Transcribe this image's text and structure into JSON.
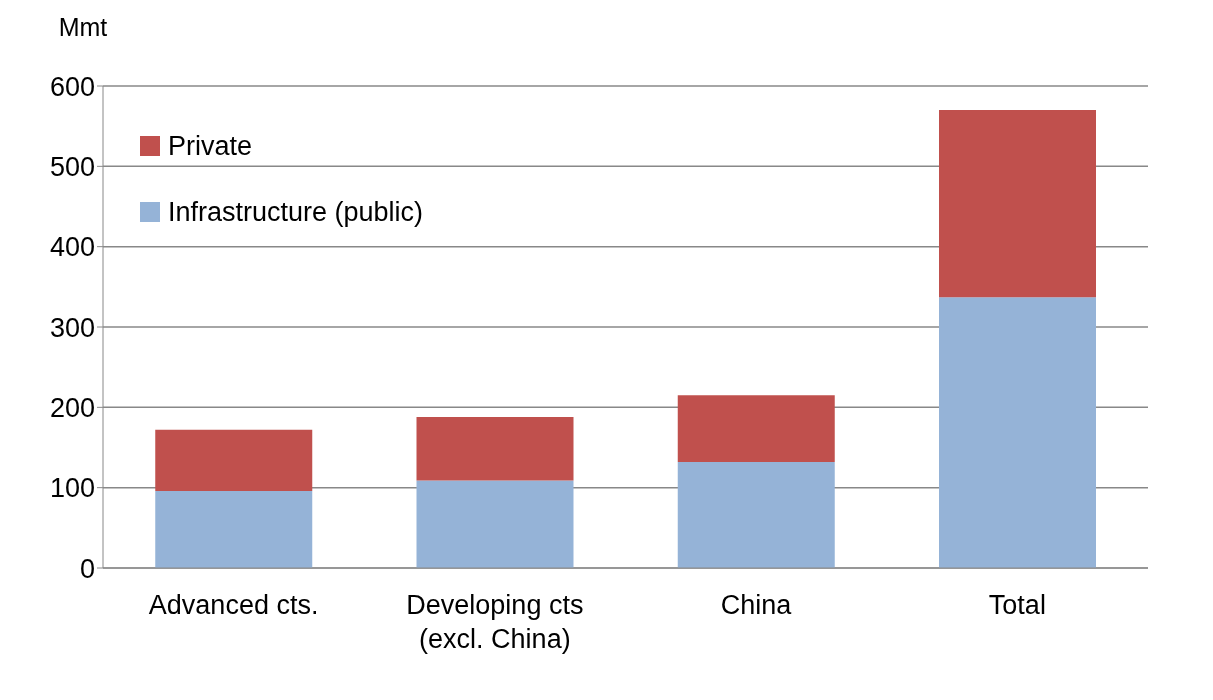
{
  "chart_data": {
    "type": "bar",
    "ylabel": "Mmt",
    "stacked": true,
    "categories": [
      "Advanced cts.",
      "Developing cts (excl. China)",
      "China",
      "Total"
    ],
    "series": [
      {
        "name": "Infrastructure (public)",
        "color": "#95b3d7",
        "values": [
          96,
          109,
          132,
          337
        ]
      },
      {
        "name": "Private",
        "color": "#c0504d",
        "values": [
          76,
          79,
          83,
          233
        ]
      }
    ],
    "ylim": [
      0,
      600
    ],
    "yticks": [
      0,
      100,
      200,
      300,
      400,
      500,
      600
    ],
    "grid": "y",
    "legend": "top left"
  }
}
